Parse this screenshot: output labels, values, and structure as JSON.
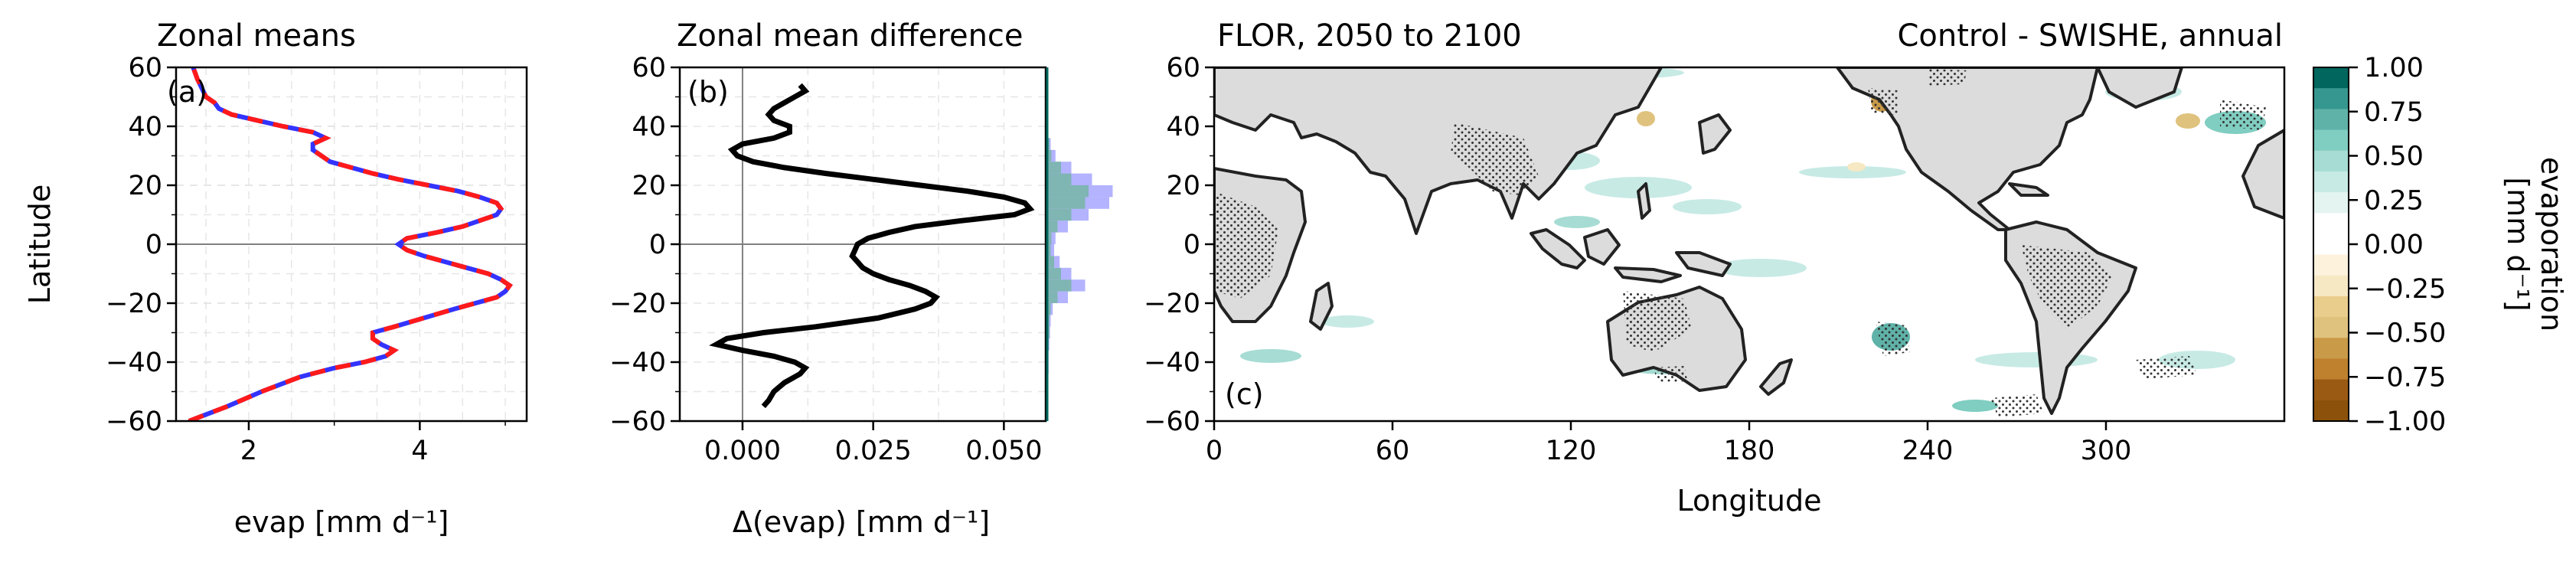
{
  "chart_data": [
    {
      "panel_label": "(a)",
      "type": "line",
      "title": "Zonal means",
      "xlabel": "evap [mm d⁻¹]",
      "ylabel": "Latitude",
      "xlim": [
        1.15,
        5.25
      ],
      "ylim": [
        -60,
        60
      ],
      "xticks": [
        2,
        4
      ],
      "yticks": [
        -60,
        -40,
        -20,
        0,
        20,
        40,
        60
      ],
      "grid": true,
      "colors": {
        "series1": "#ff1a1a",
        "series2": "#3333ff"
      },
      "series": [
        {
          "lat": [
            -60,
            -55,
            -50,
            -45,
            -42,
            -40,
            -38,
            -36,
            -34,
            -32,
            -30,
            -28,
            -25,
            -22,
            -20,
            -18,
            -16,
            -14,
            -12,
            -10,
            -8,
            -6,
            -4,
            -2,
            0,
            2,
            4,
            6,
            8,
            10,
            12,
            14,
            16,
            18,
            20,
            22,
            24,
            26,
            28,
            30,
            32,
            34,
            36,
            38,
            40,
            42,
            44,
            46,
            48,
            50,
            53,
            56,
            60
          ],
          "values": [
            1.3,
            1.75,
            2.15,
            2.6,
            3.0,
            3.35,
            3.6,
            3.7,
            3.55,
            3.45,
            3.45,
            3.7,
            4.05,
            4.4,
            4.65,
            4.9,
            5.0,
            5.05,
            4.95,
            4.8,
            4.55,
            4.3,
            4.05,
            3.85,
            3.75,
            3.85,
            4.2,
            4.5,
            4.7,
            4.9,
            4.95,
            4.9,
            4.7,
            4.45,
            4.1,
            3.75,
            3.45,
            3.2,
            2.95,
            2.85,
            2.75,
            2.75,
            2.9,
            2.75,
            2.4,
            2.1,
            1.8,
            1.65,
            1.6,
            1.5,
            1.45,
            1.4,
            1.35
          ]
        },
        {
          "lat": [
            -60,
            -55,
            -50,
            -45,
            -42,
            -40,
            -38,
            -36,
            -34,
            -32,
            -30,
            -28,
            -25,
            -22,
            -20,
            -18,
            -16,
            -14,
            -12,
            -10,
            -8,
            -6,
            -4,
            -2,
            0,
            2,
            4,
            6,
            8,
            10,
            12,
            14,
            16,
            18,
            20,
            22,
            24,
            26,
            28,
            30,
            32,
            34,
            36,
            38,
            40,
            42,
            44,
            46,
            48,
            50,
            53,
            56,
            60
          ],
          "values": [
            1.3,
            1.75,
            2.15,
            2.6,
            3.0,
            3.35,
            3.6,
            3.7,
            3.55,
            3.45,
            3.45,
            3.7,
            4.05,
            4.4,
            4.65,
            4.9,
            5.0,
            5.05,
            4.95,
            4.8,
            4.55,
            4.3,
            4.05,
            3.85,
            3.75,
            3.85,
            4.2,
            4.5,
            4.7,
            4.9,
            4.95,
            4.9,
            4.7,
            4.45,
            4.1,
            3.75,
            3.45,
            3.2,
            2.95,
            2.85,
            2.75,
            2.75,
            2.9,
            2.75,
            2.4,
            2.1,
            1.8,
            1.65,
            1.6,
            1.5,
            1.45,
            1.4,
            1.35
          ]
        }
      ]
    },
    {
      "panel_label": "(b)",
      "type": "line",
      "title": "Zonal mean difference",
      "xlabel": "Δ(evap) [mm d⁻¹]",
      "xlim": [
        -0.012,
        0.058
      ],
      "ylim": [
        -60,
        60
      ],
      "xticks": [
        "0.000",
        "0.025",
        "0.050"
      ],
      "yticks": [
        -60,
        -40,
        -20,
        0,
        20,
        40,
        60
      ],
      "grid": true,
      "line": {
        "lat": [
          -55,
          -53,
          -50,
          -47,
          -44,
          -42,
          -40,
          -38,
          -36,
          -34,
          -32,
          -30,
          -28,
          -25,
          -22,
          -20,
          -18,
          -16,
          -14,
          -12,
          -10,
          -8,
          -6,
          -4,
          -2,
          0,
          2,
          4,
          6,
          8,
          10,
          12,
          14,
          16,
          18,
          20,
          22,
          24,
          26,
          28,
          30,
          32,
          34,
          36,
          38,
          40,
          42,
          44,
          46,
          48,
          50,
          52,
          54
        ],
        "values": [
          0.004,
          0.005,
          0.006,
          0.008,
          0.011,
          0.012,
          0.01,
          0.006,
          0.0,
          -0.005,
          -0.003,
          0.004,
          0.014,
          0.026,
          0.033,
          0.036,
          0.037,
          0.035,
          0.032,
          0.028,
          0.025,
          0.023,
          0.022,
          0.021,
          0.0215,
          0.022,
          0.024,
          0.028,
          0.033,
          0.042,
          0.052,
          0.055,
          0.054,
          0.05,
          0.043,
          0.034,
          0.025,
          0.016,
          0.008,
          0.002,
          -0.001,
          -0.002,
          0.0,
          0.006,
          0.009,
          0.009,
          0.006,
          0.005,
          0.006,
          0.008,
          0.01,
          0.012,
          0.011
        ]
      },
      "histogram": {
        "colors": [
          "#b3b3ff",
          "#7fb5b3"
        ],
        "lat_centers": [
          -42,
          -38,
          -34,
          -30,
          -26,
          -22,
          -18,
          -14,
          -10,
          -6,
          -2,
          2,
          6,
          10,
          14,
          18,
          22,
          26,
          30,
          34
        ],
        "blue_fraction": [
          0.02,
          0.02,
          0.03,
          0.04,
          0.05,
          0.08,
          0.3,
          0.55,
          0.35,
          0.18,
          0.1,
          0.12,
          0.3,
          0.6,
          0.9,
          0.95,
          0.65,
          0.35,
          0.12,
          0.05
        ],
        "teal_fraction": [
          0.01,
          0.01,
          0.02,
          0.03,
          0.03,
          0.05,
          0.15,
          0.35,
          0.2,
          0.1,
          0.05,
          0.06,
          0.15,
          0.35,
          0.55,
          0.6,
          0.35,
          0.2,
          0.06,
          0.03
        ]
      }
    },
    {
      "panel_label": "(c)",
      "type": "heatmap",
      "title": "FLOR, 2050 to 2100",
      "title_right": "Control - SWISHE, annual",
      "xlabel": "Longitude",
      "xlim": [
        0,
        360
      ],
      "ylim": [
        -60,
        60
      ],
      "xticks": [
        0,
        60,
        120,
        180,
        240,
        300
      ],
      "yticks": [
        -60,
        -40,
        -20,
        0,
        20,
        40,
        60
      ],
      "colorbar": {
        "label_line1": "evaporation",
        "label_line2": "[mm d⁻¹]",
        "ticks": [
          "1.00",
          "0.75",
          "0.50",
          "0.25",
          "0.00",
          "−0.25",
          "−0.50",
          "−0.75",
          "−1.00"
        ],
        "levels": [
          [
            "#01665e",
            1.0
          ],
          [
            "#35978f",
            0.875
          ],
          [
            "#5fb2a8",
            0.75
          ],
          [
            "#80cdc1",
            0.625
          ],
          [
            "#a6dcd3",
            0.5
          ],
          [
            "#c7eae5",
            0.375
          ],
          [
            "#e3f4f1",
            0.25
          ],
          [
            "#ffffff",
            0.125
          ],
          [
            "#ffffff",
            0.0
          ],
          [
            "#fdf2dc",
            -0.125
          ],
          [
            "#f6e8c3",
            -0.25
          ],
          [
            "#e9cd8c",
            -0.375
          ],
          [
            "#dfc27d",
            -0.5
          ],
          [
            "#c99a48",
            -0.625
          ],
          [
            "#bf812d",
            -0.75
          ],
          [
            "#9b5a13",
            -0.875
          ],
          [
            "#8c510a",
            -1.0
          ]
        ]
      },
      "land_color": "#dcdcdc",
      "stipple_color": "#333333"
    }
  ]
}
